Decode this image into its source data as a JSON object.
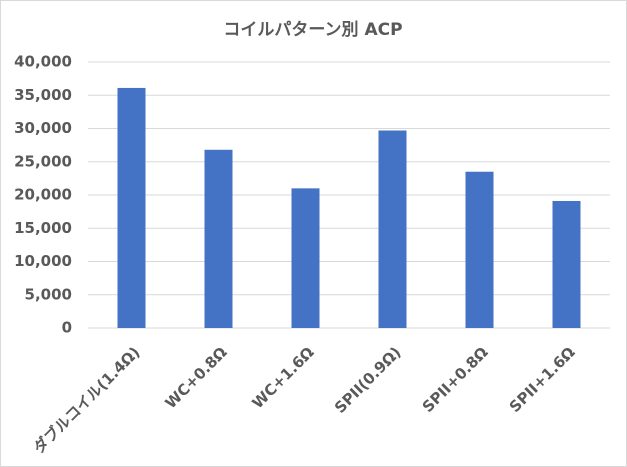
{
  "chart_data": {
    "type": "bar",
    "title": "コイルパターン別 ACP",
    "categories": [
      "ダブルコイル(1.4Ω)",
      "WC+0.8Ω",
      "WC+1.6Ω",
      "SPII(0.9Ω)",
      "SPII+0.8Ω",
      "SPII+1.6Ω"
    ],
    "values": [
      36100,
      26800,
      21000,
      29700,
      23500,
      19100
    ],
    "color": "#4472c4",
    "ylim": [
      0,
      40000
    ],
    "yticks": [
      0,
      {
        "value": 5000,
        "label": "5,000"
      },
      {
        "value": 10000,
        "label": "10,000"
      },
      {
        "value": 15000,
        "label": "15,000"
      },
      {
        "value": 20000,
        "label": "20,000"
      },
      {
        "value": 25000,
        "label": "25,000"
      },
      {
        "value": 30000,
        "label": "30,000"
      },
      {
        "value": 35000,
        "label": "35,000"
      },
      {
        "value": 40000,
        "label": "40,000"
      }
    ],
    "grid": true
  }
}
